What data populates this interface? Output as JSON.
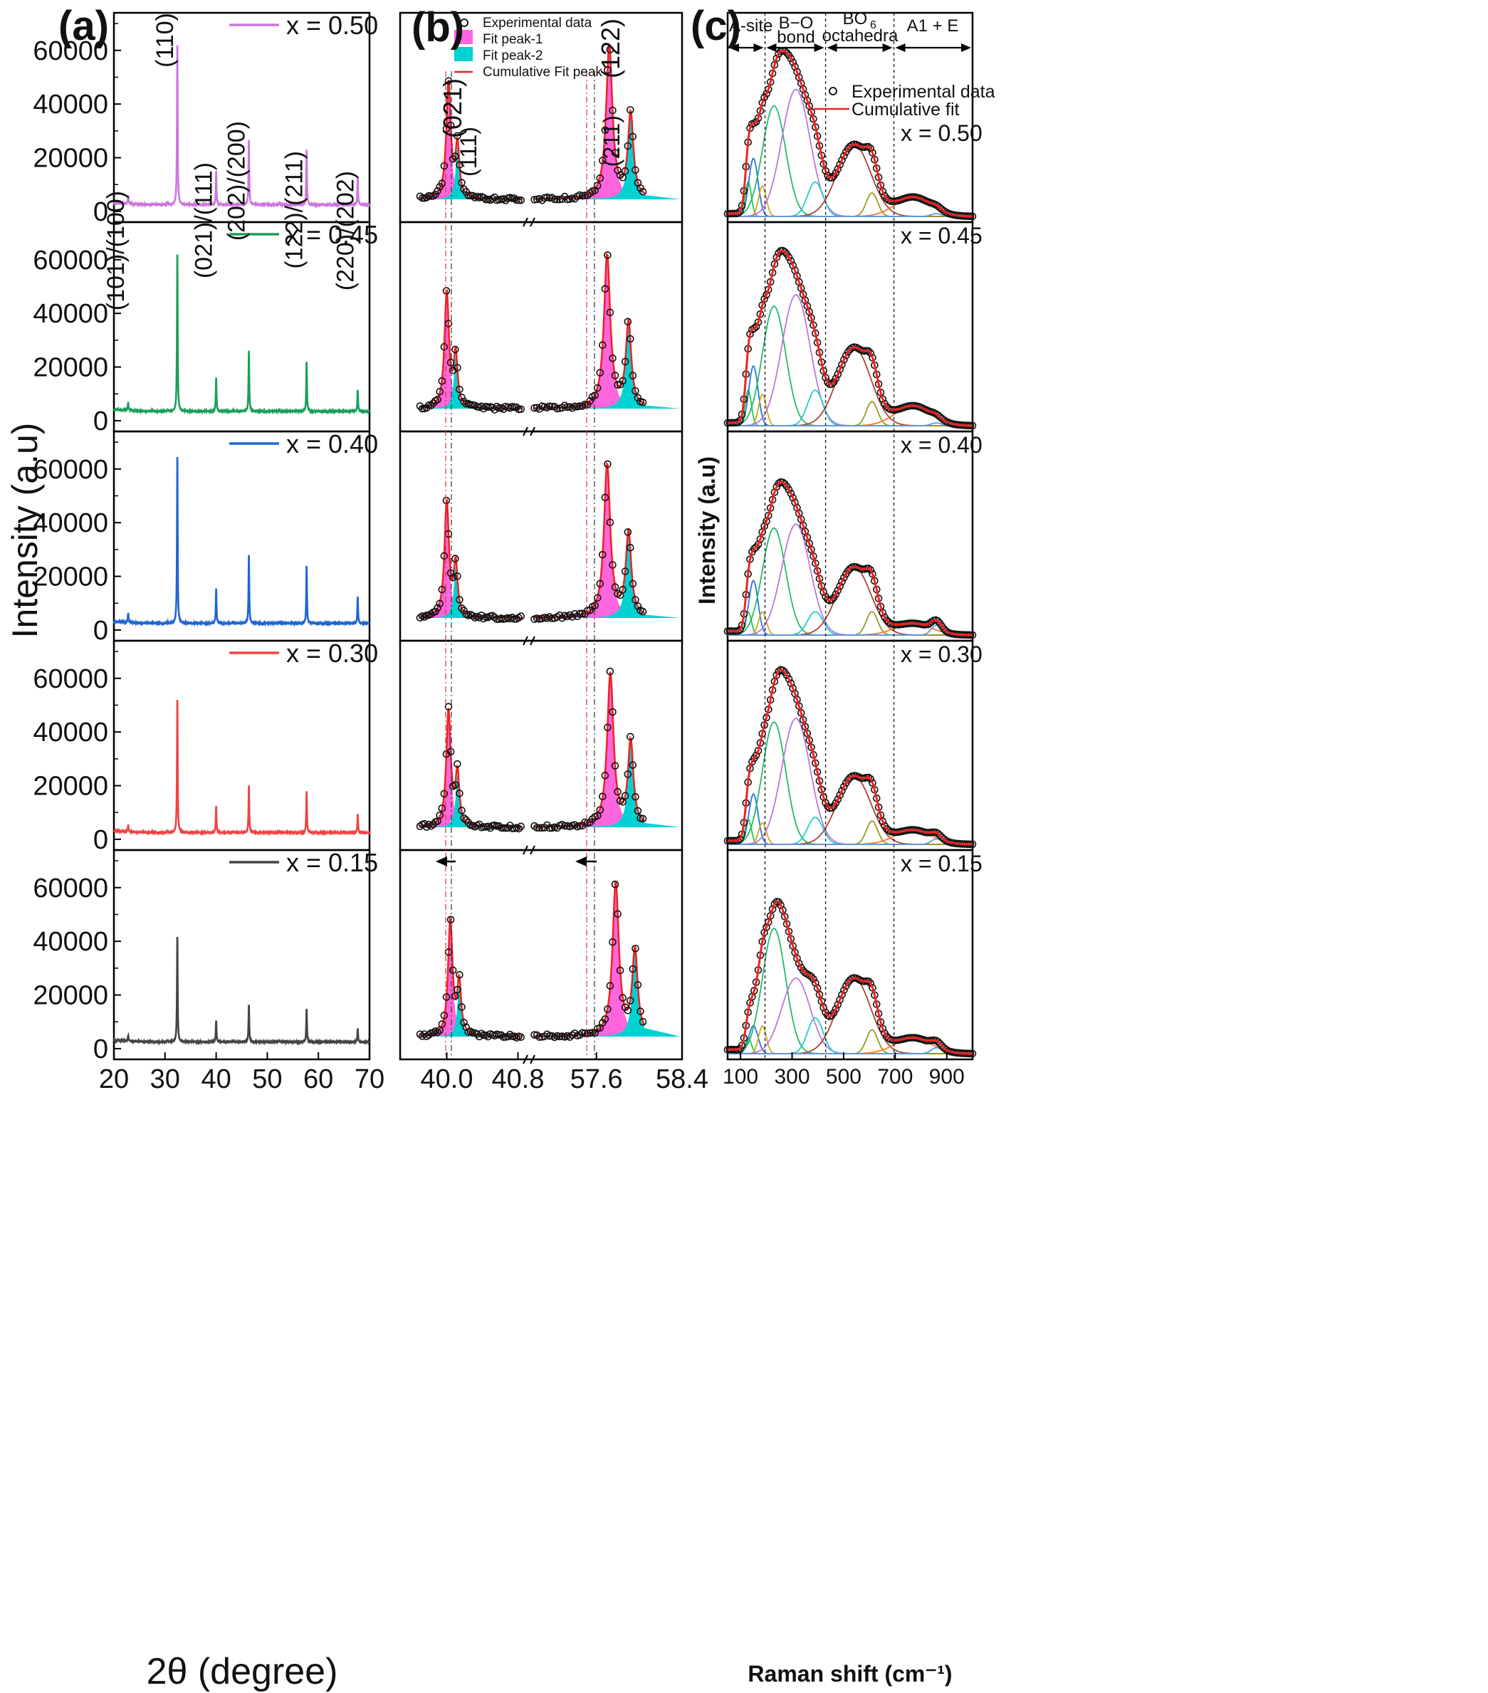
{
  "chart_data": [
    {
      "id": "a",
      "type": "line",
      "panel_label": "(a)",
      "title": "",
      "xlabel": "2θ (degree)",
      "ylabel": "Intensity (a.u)",
      "xlim": [
        20,
        70
      ],
      "ylim": [
        -4000,
        74000
      ],
      "xticks": [
        "20",
        "30",
        "40",
        "50",
        "60",
        "70"
      ],
      "yticks": [
        "0",
        "20000",
        "40000",
        "60000"
      ],
      "peak_labels": [
        "(101)/(100)",
        "(110)",
        "(021)/(111)",
        "(202)/(200)",
        "(122)/(211)",
        "(220)/(202)"
      ],
      "peak_positions": [
        22.8,
        32.4,
        40.0,
        46.4,
        57.7,
        67.7
      ],
      "series": [
        {
          "name": "x = 0.50",
          "color": "#cc77dd",
          "baseline": 2500,
          "peaks": [
            5500,
            63000,
            15000,
            27000,
            23000,
            12500
          ]
        },
        {
          "name": "x = 0.45",
          "color": "#1a9e5c",
          "baseline": 3500,
          "peaks": [
            6500,
            63000,
            16000,
            26500,
            22000,
            11500
          ]
        },
        {
          "name": "x = 0.40",
          "color": "#1f66d1",
          "baseline": 2500,
          "peaks": [
            6000,
            65500,
            15500,
            28500,
            24000,
            12500
          ]
        },
        {
          "name": "x = 0.30",
          "color": "#ee4444",
          "baseline": 2500,
          "peaks": [
            5000,
            53000,
            12500,
            20500,
            18000,
            9500
          ]
        },
        {
          "name": "x = 0.15",
          "color": "#444444",
          "baseline": 2500,
          "peaks": [
            4500,
            42500,
            10500,
            16500,
            15000,
            7500
          ]
        }
      ]
    },
    {
      "id": "b",
      "type": "line",
      "panel_label": "(b)",
      "title": "",
      "xlabel": "",
      "ylabel": "",
      "xticks": [
        "40.0",
        "40.8",
        "57.6",
        "58.4"
      ],
      "legend": [
        "Experimental data",
        "Fit peak-1",
        "Fit peak-2",
        "Cumulative Fit peak"
      ],
      "peak_labels": [
        "(021)",
        "(111)",
        "(122)",
        "(211)"
      ],
      "series": [
        {
          "name": "x = 0.50",
          "peak1_021": 40.02,
          "peak2_111": 40.12,
          "peak1_122": 57.72,
          "peak2_211": 57.92
        },
        {
          "name": "x = 0.45",
          "peak1_021": 40.0,
          "peak2_111": 40.1,
          "peak1_122": 57.7,
          "peak2_211": 57.9
        },
        {
          "name": "x = 0.40",
          "peak1_021": 40.0,
          "peak2_111": 40.1,
          "peak1_122": 57.7,
          "peak2_211": 57.9
        },
        {
          "name": "x = 0.30",
          "peak1_021": 40.02,
          "peak2_111": 40.12,
          "peak1_122": 57.73,
          "peak2_211": 57.92
        },
        {
          "name": "x = 0.15",
          "peak1_021": 40.04,
          "peak2_111": 40.14,
          "peak1_122": 57.78,
          "peak2_211": 57.96
        }
      ]
    },
    {
      "id": "c",
      "type": "line",
      "panel_label": "(c)",
      "title": "",
      "xlabel": "Raman shift (cm⁻¹)",
      "ylabel": "Intensity (a.u)",
      "xlim": [
        50,
        1000
      ],
      "xticks": [
        "100",
        "300",
        "500",
        "700",
        "900"
      ],
      "region_labels": {
        "a_site": "A-site",
        "bo_bond_1": "B−O",
        "bo_bond_2": "bond",
        "bo6_1": "BO",
        "bo6_sub": "6",
        "bo6_2": "octahedra",
        "a1e": "A1 + E"
      },
      "region_boundaries": [
        195,
        430,
        695
      ],
      "legend": [
        "Experimental data",
        "Cumulative fit"
      ],
      "component_centers": [
        130,
        150,
        185,
        230,
        315,
        390,
        540,
        610,
        770,
        860
      ],
      "series": [
        {
          "name": "x = 0.50",
          "amplitudes": [
            0.25,
            0.42,
            0.22,
            0.8,
            0.92,
            0.25,
            0.52,
            0.17,
            0.14,
            0.02
          ]
        },
        {
          "name": "x = 0.45",
          "amplitudes": [
            0.25,
            0.42,
            0.22,
            0.84,
            0.92,
            0.25,
            0.55,
            0.17,
            0.14,
            0.02
          ]
        },
        {
          "name": "x = 0.40",
          "amplitudes": [
            0.12,
            0.28,
            0.12,
            0.55,
            0.57,
            0.12,
            0.35,
            0.12,
            0.06,
            0.05
          ]
        },
        {
          "name": "x = 0.30",
          "amplitudes": [
            0.14,
            0.28,
            0.12,
            0.68,
            0.7,
            0.15,
            0.38,
            0.13,
            0.08,
            0.03
          ]
        },
        {
          "name": "x = 0.15",
          "amplitudes": [
            0.08,
            0.14,
            0.14,
            0.63,
            0.38,
            0.18,
            0.38,
            0.12,
            0.08,
            0.03
          ]
        }
      ]
    }
  ]
}
